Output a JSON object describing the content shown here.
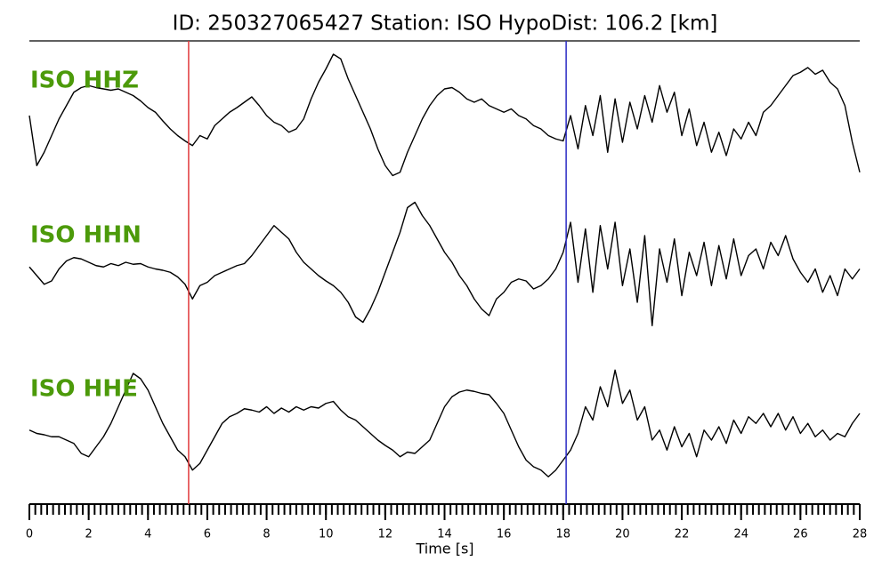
{
  "chart_data": {
    "type": "line",
    "title": "ID: 250327065427   Station: ISO   HypoDist:   106.2 [km]",
    "xlabel": "Time [s]",
    "xlim": [
      0,
      28
    ],
    "xticks": [
      0,
      2,
      4,
      6,
      8,
      10,
      12,
      14,
      16,
      18,
      20,
      22,
      24,
      26,
      28
    ],
    "xminor": 0.2,
    "ylim": [
      -1,
      1
    ],
    "label_color": "#4c9a0a",
    "picks": [
      {
        "x": 5.37,
        "color": "#e0393b"
      },
      {
        "x": 18.1,
        "color": "#2b2bc4"
      }
    ],
    "x": [
      0,
      0.25,
      0.5,
      0.75,
      1,
      1.25,
      1.5,
      1.75,
      2,
      2.25,
      2.5,
      2.75,
      3,
      3.25,
      3.5,
      3.75,
      4,
      4.25,
      4.5,
      4.75,
      5,
      5.25,
      5.5,
      5.75,
      6,
      6.25,
      6.5,
      6.75,
      7,
      7.25,
      7.5,
      7.75,
      8,
      8.25,
      8.5,
      8.75,
      9,
      9.25,
      9.5,
      9.75,
      10,
      10.25,
      10.5,
      10.75,
      11,
      11.25,
      11.5,
      11.75,
      12,
      12.25,
      12.5,
      12.75,
      13,
      13.25,
      13.5,
      13.75,
      14,
      14.25,
      14.5,
      14.75,
      15,
      15.25,
      15.5,
      15.75,
      16,
      16.25,
      16.5,
      16.75,
      17,
      17.25,
      17.5,
      17.75,
      18,
      18.25,
      18.5,
      18.75,
      19,
      19.25,
      19.5,
      19.75,
      20,
      20.25,
      20.5,
      20.75,
      21,
      21.25,
      21.5,
      21.75,
      22,
      22.25,
      22.5,
      22.75,
      23,
      23.25,
      23.5,
      23.75,
      24,
      24.25,
      24.5,
      24.75,
      25,
      25.25,
      25.5,
      25.75,
      26,
      26.25,
      26.5,
      26.75,
      27,
      27.25,
      27.5,
      27.75,
      28
    ],
    "series": [
      {
        "name": "ISO HHZ",
        "color": "#000000",
        "values": [
          0,
          -0.75,
          -0.55,
          -0.3,
          -0.05,
          0.15,
          0.35,
          0.42,
          0.45,
          0.42,
          0.4,
          0.38,
          0.4,
          0.35,
          0.3,
          0.22,
          0.12,
          0.05,
          -0.08,
          -0.2,
          -0.3,
          -0.38,
          -0.45,
          -0.3,
          -0.35,
          -0.15,
          -0.05,
          0.05,
          0.12,
          0.2,
          0.28,
          0.15,
          0,
          -0.1,
          -0.15,
          -0.25,
          -0.2,
          -0.05,
          0.25,
          0.5,
          0.7,
          0.92,
          0.85,
          0.55,
          0.3,
          0.05,
          -0.2,
          -0.5,
          -0.75,
          -0.9,
          -0.85,
          -0.55,
          -0.3,
          -0.05,
          0.15,
          0.3,
          0.4,
          0.42,
          0.35,
          0.25,
          0.2,
          0.25,
          0.15,
          0.1,
          0.05,
          0.1,
          0,
          -0.05,
          -0.15,
          -0.2,
          -0.3,
          -0.35,
          -0.38,
          0,
          -0.5,
          0.15,
          -0.3,
          0.3,
          -0.55,
          0.25,
          -0.4,
          0.2,
          -0.2,
          0.3,
          -0.1,
          0.45,
          0.05,
          0.35,
          -0.3,
          0.1,
          -0.45,
          -0.1,
          -0.55,
          -0.25,
          -0.6,
          -0.2,
          -0.35,
          -0.1,
          -0.3,
          0.05,
          0.15,
          0.3,
          0.45,
          0.6,
          0.65,
          0.72,
          0.62,
          0.68,
          0.5,
          0.4,
          0.15,
          -0.4,
          -0.85
        ]
      },
      {
        "name": "ISO HHN",
        "color": "#000000",
        "values": [
          -0.07,
          -0.2,
          -0.33,
          -0.28,
          -0.1,
          0.02,
          0.07,
          0.05,
          0,
          -0.05,
          -0.07,
          -0.02,
          -0.05,
          0,
          -0.03,
          -0.02,
          -0.07,
          -0.1,
          -0.12,
          -0.15,
          -0.22,
          -0.33,
          -0.55,
          -0.35,
          -0.3,
          -0.2,
          -0.15,
          -0.1,
          -0.05,
          -0.02,
          0.1,
          0.25,
          0.4,
          0.55,
          0.45,
          0.35,
          0.15,
          0,
          -0.1,
          -0.2,
          -0.28,
          -0.35,
          -0.45,
          -0.6,
          -0.82,
          -0.9,
          -0.7,
          -0.45,
          -0.15,
          0.15,
          0.45,
          0.82,
          0.9,
          0.7,
          0.55,
          0.35,
          0.15,
          0,
          -0.2,
          -0.35,
          -0.55,
          -0.7,
          -0.8,
          -0.55,
          -0.45,
          -0.3,
          -0.25,
          -0.28,
          -0.4,
          -0.35,
          -0.25,
          -0.1,
          0.15,
          0.6,
          -0.3,
          0.5,
          -0.45,
          0.55,
          -0.1,
          0.6,
          -0.35,
          0.2,
          -0.6,
          0.4,
          -0.95,
          0.2,
          -0.3,
          0.35,
          -0.5,
          0.15,
          -0.2,
          0.3,
          -0.35,
          0.25,
          -0.25,
          0.35,
          -0.2,
          0.1,
          0.2,
          -0.1,
          0.3,
          0.1,
          0.4,
          0.05,
          -0.15,
          -0.3,
          -0.1,
          -0.45,
          -0.2,
          -0.5,
          -0.1,
          -0.25,
          -0.1
        ]
      },
      {
        "name": "ISO HHE",
        "color": "#000000",
        "values": [
          -0.05,
          -0.1,
          -0.12,
          -0.15,
          -0.15,
          -0.2,
          -0.25,
          -0.4,
          -0.45,
          -0.3,
          -0.15,
          0.05,
          0.3,
          0.55,
          0.8,
          0.72,
          0.55,
          0.3,
          0.05,
          -0.15,
          -0.35,
          -0.45,
          -0.65,
          -0.55,
          -0.35,
          -0.15,
          0.05,
          0.15,
          0.2,
          0.27,
          0.25,
          0.22,
          0.3,
          0.2,
          0.28,
          0.22,
          0.3,
          0.25,
          0.3,
          0.28,
          0.35,
          0.38,
          0.25,
          0.15,
          0.1,
          0,
          -0.1,
          -0.2,
          -0.28,
          -0.35,
          -0.45,
          -0.38,
          -0.4,
          -0.3,
          -0.2,
          0.05,
          0.3,
          0.45,
          0.52,
          0.55,
          0.53,
          0.5,
          0.48,
          0.35,
          0.2,
          -0.05,
          -0.3,
          -0.5,
          -0.6,
          -0.65,
          -0.75,
          -0.65,
          -0.5,
          -0.35,
          -0.1,
          0.3,
          0.1,
          0.6,
          0.3,
          0.85,
          0.35,
          0.55,
          0.1,
          0.3,
          -0.2,
          -0.05,
          -0.35,
          0,
          -0.3,
          -0.1,
          -0.45,
          -0.05,
          -0.2,
          0,
          -0.25,
          0.1,
          -0.1,
          0.15,
          0.05,
          0.2,
          0,
          0.2,
          -0.05,
          0.15,
          -0.1,
          0.05,
          -0.15,
          -0.05,
          -0.2,
          -0.1,
          -0.15,
          0.05,
          0.2
        ]
      }
    ]
  }
}
